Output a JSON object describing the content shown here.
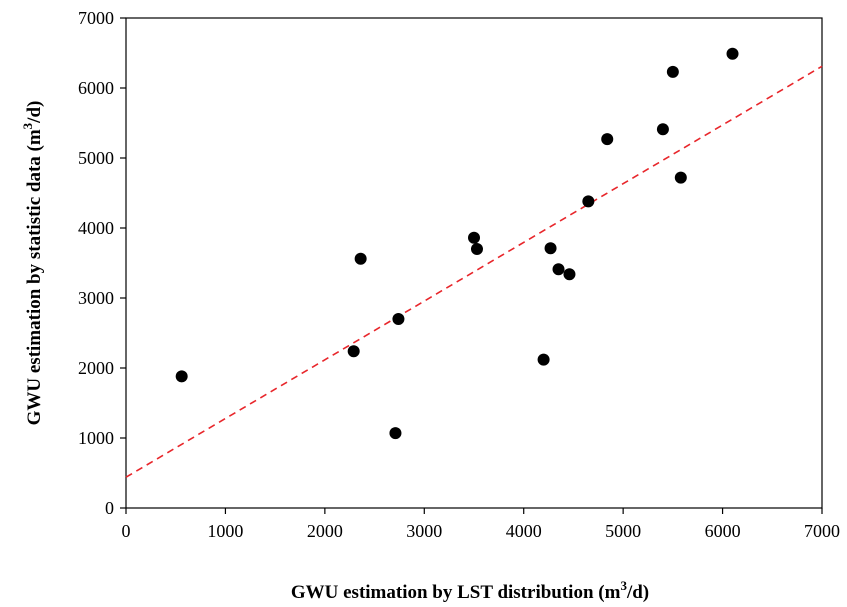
{
  "chart_data": {
    "type": "scatter",
    "title": "",
    "xlabel_main": "GWU estimation by LST distribution (m",
    "xlabel_sup": "3",
    "xlabel_end": "/d)",
    "ylabel_main": "GWU  estimation by statistic data (m",
    "ylabel_sup": "3",
    "ylabel_end": "/d)",
    "xlim": [
      0,
      7000
    ],
    "ylim": [
      0,
      7000
    ],
    "xticks": [
      0,
      1000,
      2000,
      3000,
      4000,
      5000,
      6000,
      7000
    ],
    "yticks": [
      0,
      1000,
      2000,
      3000,
      4000,
      5000,
      6000,
      7000
    ],
    "xtick_labels": [
      "0",
      "1000",
      "2000",
      "3000",
      "4000",
      "5000",
      "6000",
      "7000"
    ],
    "ytick_labels": [
      "0",
      "1000",
      "2000",
      "3000",
      "4000",
      "5000",
      "6000",
      "7000"
    ],
    "grid": false,
    "legend": "none",
    "marker_color": "#000000",
    "trend_color": "#e8262b",
    "points": [
      {
        "x": 560,
        "y": 1880
      },
      {
        "x": 2290,
        "y": 2240
      },
      {
        "x": 2360,
        "y": 3560
      },
      {
        "x": 2710,
        "y": 1070
      },
      {
        "x": 2740,
        "y": 2700
      },
      {
        "x": 3500,
        "y": 3860
      },
      {
        "x": 3530,
        "y": 3700
      },
      {
        "x": 4200,
        "y": 2120
      },
      {
        "x": 4270,
        "y": 3710
      },
      {
        "x": 4350,
        "y": 3410
      },
      {
        "x": 4460,
        "y": 3340
      },
      {
        "x": 4650,
        "y": 4380
      },
      {
        "x": 4840,
        "y": 5270
      },
      {
        "x": 5400,
        "y": 5410
      },
      {
        "x": 5500,
        "y": 6230
      },
      {
        "x": 5580,
        "y": 4720
      },
      {
        "x": 6100,
        "y": 6490
      }
    ],
    "trendline": {
      "x": [
        0,
        7000
      ],
      "y": [
        440,
        6310
      ]
    }
  }
}
